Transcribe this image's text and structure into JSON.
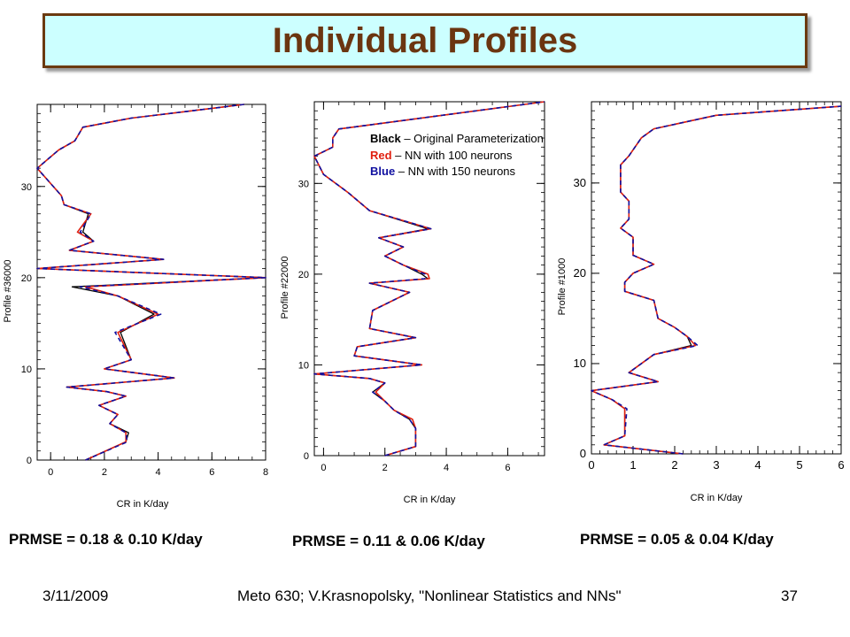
{
  "title": "Individual Profiles",
  "legend": {
    "black_key": "Black",
    "black_text": " – Original Parameterization",
    "red_key": "Red",
    "red_text": " – NN with 100 neurons",
    "blue_key": "Blue",
    "blue_text": " – NN with 150 neurons"
  },
  "prmse": [
    "PRMSE = 0.18 & 0.10 K/day",
    "PRMSE = 0.11 & 0.06 K/day",
    "PRMSE = 0.05 & 0.04 K/day"
  ],
  "footer": {
    "date": "3/11/2009",
    "course": "Meto 630; V.Krasnopolsky, \"Nonlinear Statistics and NNs\"",
    "page": "37"
  },
  "colors": {
    "original": "#000000",
    "nn100": "#e02010",
    "nn150": "#1010a0",
    "title_text": "#6b3510",
    "title_bg": "#ccffff"
  },
  "chart_data": [
    {
      "type": "line",
      "ylabel": "Profile #36000",
      "xlabel": "CR in K/day",
      "xlim": [
        -0.5,
        8
      ],
      "ylim": [
        0,
        39
      ],
      "xticks": [
        0,
        2,
        4,
        6,
        8
      ],
      "yticks": [
        0,
        10,
        20,
        30
      ],
      "x": [
        1.3,
        2.8,
        2.8,
        2.2,
        2.5,
        1.8,
        2.8,
        2.1,
        0.6,
        4.6,
        2.0,
        3.0,
        2.5,
        4.0,
        2.5,
        1.3,
        8.0,
        -0.5,
        4.2,
        0.7,
        1.6,
        1.0,
        1.5,
        0.5,
        0.4,
        -0.5,
        0.3,
        0.9,
        1.2,
        3.0,
        5.0,
        7.2
      ],
      "y": [
        0,
        2,
        3,
        4,
        5,
        6,
        7,
        7.5,
        8,
        9,
        10,
        11,
        14,
        16,
        18,
        19,
        20,
        21,
        22,
        23,
        24,
        25,
        27,
        28,
        29,
        32,
        34,
        35,
        36.5,
        37.5,
        38.2,
        39
      ],
      "series": [
        {
          "name": "Original",
          "dx": [
            0,
            0,
            0.1,
            0,
            0,
            0,
            0,
            0,
            0,
            0,
            0,
            0,
            0.1,
            -0.15,
            0,
            -0.5,
            0,
            0,
            0,
            0,
            0,
            0.2,
            -0.1,
            0,
            0,
            0,
            0,
            0,
            0,
            0,
            0,
            0
          ]
        },
        {
          "name": "NN 100",
          "dx": [
            0,
            0,
            0,
            0,
            0,
            0,
            0,
            0,
            0,
            0,
            0,
            0,
            0,
            0,
            0,
            0,
            0,
            0,
            0,
            0,
            0,
            0,
            0,
            0,
            0,
            0,
            0,
            0,
            0,
            0,
            0,
            0
          ]
        },
        {
          "name": "NN 150",
          "dx": [
            0,
            0.05,
            0,
            0,
            0,
            0,
            0,
            0,
            0,
            0,
            0,
            0,
            -0.1,
            0.1,
            0,
            -0.2,
            0,
            0,
            0,
            0,
            0,
            0.1,
            0,
            0,
            0,
            0,
            0,
            0,
            0,
            0,
            0,
            0
          ]
        }
      ]
    },
    {
      "type": "line",
      "ylabel": "Profile #22000",
      "xlabel": "CR in K/day",
      "xlim": [
        -0.3,
        7.2
      ],
      "ylim": [
        0,
        39
      ],
      "xticks": [
        0,
        2,
        4,
        6
      ],
      "yticks": [
        0,
        10,
        20,
        30
      ],
      "x": [
        2.0,
        3.0,
        3.0,
        2.8,
        2.3,
        2.0,
        1.6,
        2.0,
        1.5,
        -0.3,
        3.2,
        1.0,
        1.1,
        3.0,
        1.5,
        1.6,
        2.8,
        1.5,
        3.3,
        3.3,
        2.6,
        2.0,
        2.6,
        1.8,
        3.5,
        1.5,
        0.8,
        0.0,
        -0.3,
        0.3,
        0.3,
        0.5,
        7.2
      ],
      "y": [
        0,
        1,
        3,
        4,
        5,
        6,
        7,
        8,
        8.5,
        9,
        10,
        11,
        12,
        13,
        14,
        16,
        18,
        19,
        19.5,
        20,
        21,
        22,
        23,
        24,
        25,
        27,
        29,
        31,
        33,
        34,
        35,
        36,
        39
      ],
      "series": [
        {
          "name": "Original",
          "dx": [
            0,
            0,
            0,
            0,
            0,
            0,
            0,
            0,
            0,
            0,
            0,
            0,
            0,
            0,
            0,
            0,
            0,
            0,
            0.1,
            -0.1,
            0,
            0,
            0,
            0,
            -0.1,
            0,
            0,
            0,
            0,
            0,
            0,
            0,
            0
          ]
        },
        {
          "name": "NN 100",
          "dx": [
            0,
            0,
            0,
            0.1,
            0,
            0,
            0.1,
            0,
            0,
            0,
            0,
            0,
            0,
            0,
            0,
            0,
            0,
            0,
            0.15,
            0.1,
            0,
            0,
            0,
            0,
            0,
            0,
            0,
            0,
            0,
            0,
            0,
            0,
            0
          ]
        },
        {
          "name": "NN 150",
          "dx": [
            0,
            0,
            0,
            0,
            0,
            0,
            0,
            0,
            0,
            0,
            0,
            0,
            0,
            0,
            0,
            0,
            0,
            0,
            0,
            0,
            0,
            0,
            0,
            0,
            0,
            0,
            0,
            0,
            0,
            0,
            0,
            0,
            0
          ]
        }
      ]
    },
    {
      "type": "line",
      "ylabel": "Profile #1000",
      "xlabel": "CR in K/day",
      "xlim": [
        0,
        6
      ],
      "ylim": [
        0,
        39
      ],
      "xticks": [
        0,
        1,
        2,
        3,
        4,
        5,
        6
      ],
      "yticks": [
        0,
        10,
        20,
        30
      ],
      "x": [
        2.2,
        0.3,
        0.8,
        0.8,
        0.5,
        0.0,
        1.6,
        0.9,
        1.5,
        2.5,
        2.3,
        2.0,
        1.6,
        1.5,
        0.8,
        0.8,
        1.0,
        1.5,
        1.0,
        1.0,
        0.7,
        0.9,
        0.9,
        0.7,
        0.7,
        0.9,
        1.2,
        1.5,
        3.0,
        6.0
      ],
      "y": [
        0,
        1,
        2,
        5,
        6,
        7,
        8,
        9,
        11,
        12,
        13,
        14,
        15,
        17,
        18,
        19,
        20,
        21,
        22,
        24,
        25,
        26,
        28,
        29,
        32,
        33,
        35,
        36,
        37.5,
        38.5
      ],
      "series": [
        {
          "name": "Original",
          "dx": [
            0,
            0,
            0,
            0,
            0,
            0,
            0,
            0,
            0,
            -0.1,
            0,
            0,
            0,
            0,
            0,
            0,
            0,
            0,
            0,
            0,
            0,
            0,
            0,
            0,
            0,
            0,
            0,
            0,
            0,
            0
          ]
        },
        {
          "name": "NN 100",
          "dx": [
            0,
            0,
            0,
            0,
            0,
            0,
            0,
            0,
            0,
            0,
            0,
            0,
            0,
            0,
            0,
            0,
            0,
            0,
            0,
            0,
            0,
            0,
            0,
            0,
            0,
            0,
            0,
            0,
            0,
            0
          ]
        },
        {
          "name": "NN 150",
          "dx": [
            0,
            0,
            0,
            0.05,
            0,
            0,
            0,
            0,
            0,
            0.05,
            0,
            0,
            0,
            0,
            0,
            0,
            0,
            0,
            0,
            0,
            0,
            0,
            0,
            0,
            0,
            0,
            0,
            0,
            0,
            0
          ]
        }
      ]
    }
  ]
}
